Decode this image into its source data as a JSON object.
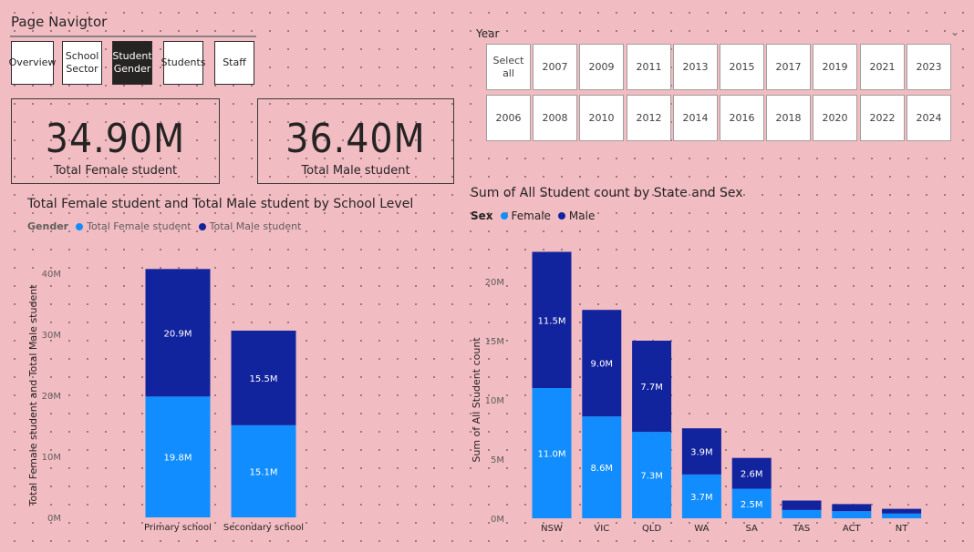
{
  "navigator": {
    "title": "Page Navigtor",
    "buttons": [
      {
        "label": "Overview",
        "active": false
      },
      {
        "label": "School\nSector",
        "active": false
      },
      {
        "label": "Student\nGender",
        "active": true
      },
      {
        "label": "Students",
        "active": false
      },
      {
        "label": "Staff",
        "active": false
      }
    ]
  },
  "cards": {
    "female": {
      "value": "34.90M",
      "label": "Total Female student"
    },
    "male": {
      "value": "36.40M",
      "label": "Total Male student"
    }
  },
  "year_slicer": {
    "title": "Year",
    "row1": [
      "Select\nall",
      "2007",
      "2009",
      "2011",
      "2013",
      "2015",
      "2017",
      "2019",
      "2021",
      "2023"
    ],
    "row2": [
      "2006",
      "2008",
      "2010",
      "2012",
      "2014",
      "2016",
      "2018",
      "2020",
      "2022",
      "2024"
    ]
  },
  "colors": {
    "female": "#118dff",
    "male": "#12239e",
    "background": "#f2bcc3"
  },
  "chart_data": [
    {
      "type": "bar",
      "stacked": true,
      "title": "Total Female student and Total Male student by School Level",
      "legend_title": "Gender",
      "legend": [
        "Total Female student",
        "Total Male student"
      ],
      "ylabel": "Total Female student and Total Male student",
      "xlabel": "",
      "categories": [
        "Primary school",
        "Secondary school"
      ],
      "series": [
        {
          "name": "Total Female student",
          "values": [
            19.8,
            15.1
          ],
          "labels": [
            "19.8M",
            "15.1M"
          ]
        },
        {
          "name": "Total Male student",
          "values": [
            20.9,
            15.5
          ],
          "labels": [
            "20.9M",
            "15.5M"
          ]
        }
      ],
      "ylim": [
        0,
        40
      ],
      "yticks": [
        0,
        10,
        20,
        30,
        40
      ],
      "ytick_labels": [
        "0M",
        "10M",
        "20M",
        "30M",
        "40M"
      ]
    },
    {
      "type": "bar",
      "stacked": true,
      "title": "Sum of All Student count by State and Sex",
      "legend_title": "Sex",
      "legend": [
        "Female",
        "Male"
      ],
      "ylabel": "Sum of All Student count",
      "xlabel": "",
      "categories": [
        "NSW",
        "VIC",
        "QLD",
        "WA",
        "SA",
        "TAS",
        "ACT",
        "NT"
      ],
      "series": [
        {
          "name": "Female",
          "values": [
            11.0,
            8.6,
            7.3,
            3.7,
            2.5,
            0.7,
            0.6,
            0.4
          ],
          "labels": [
            "11.0M",
            "8.6M",
            "7.3M",
            "3.7M",
            "2.5M",
            "",
            "",
            ""
          ]
        },
        {
          "name": "Male",
          "values": [
            11.5,
            9.0,
            7.7,
            3.9,
            2.6,
            0.8,
            0.6,
            0.4
          ],
          "labels": [
            "11.5M",
            "9.0M",
            "7.7M",
            "3.9M",
            "2.6M",
            "",
            "",
            ""
          ]
        }
      ],
      "ylim": [
        0,
        20
      ],
      "yticks": [
        0,
        5,
        10,
        15,
        20
      ],
      "ytick_labels": [
        "0M",
        "5M",
        "10M",
        "15M",
        "20M"
      ]
    }
  ]
}
